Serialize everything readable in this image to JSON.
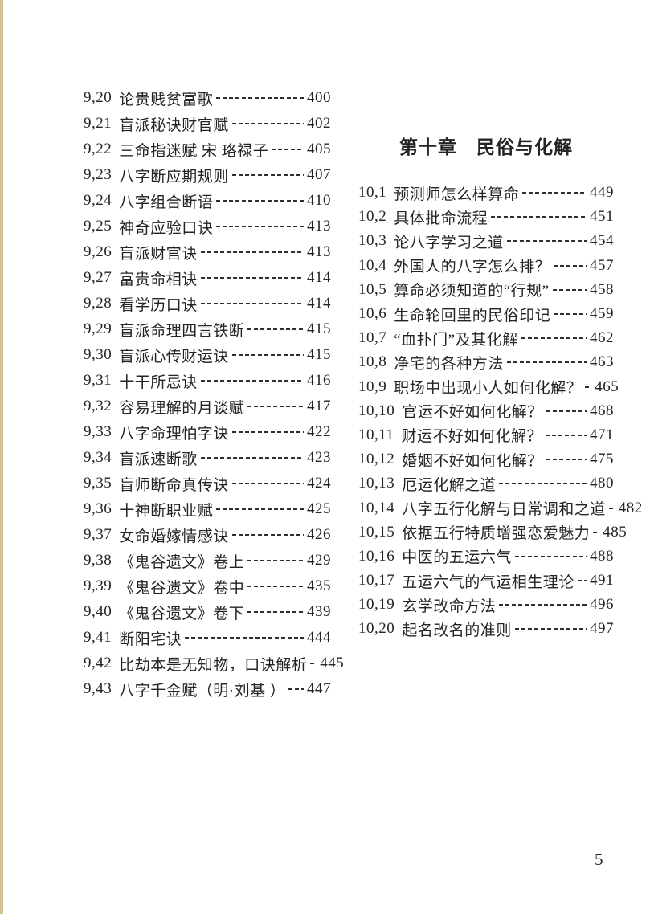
{
  "page": {
    "number": "5",
    "edge_color": "#d5c196",
    "text_color": "#242424"
  },
  "right_column": {
    "chapter_heading": "第十章　民俗与化解",
    "entries": [
      {
        "no": "10,1",
        "title": "预测师怎么样算命",
        "page": "449"
      },
      {
        "no": "10,2",
        "title": "具体批命流程",
        "page": "451"
      },
      {
        "no": "10,3",
        "title": "论八字学习之道",
        "page": "454"
      },
      {
        "no": "10,4",
        "title": "外国人的八字怎么排？",
        "page": "457"
      },
      {
        "no": "10,5",
        "title": "算命必须知道的“行规”",
        "page": "458"
      },
      {
        "no": "10,6",
        "title": "生命轮回里的民俗印记",
        "page": "459"
      },
      {
        "no": "10,7",
        "title": "“血扑门”及其化解",
        "page": "462"
      },
      {
        "no": "10,8",
        "title": "净宅的各种方法",
        "page": "463"
      },
      {
        "no": "10,9",
        "title": "职场中出现小人如何化解？",
        "page": "465"
      },
      {
        "no": "10,10",
        "title": "官运不好如何化解？",
        "page": "468"
      },
      {
        "no": "10,11",
        "title": "财运不好如何化解？",
        "page": "471"
      },
      {
        "no": "10,12",
        "title": "婚姻不好如何化解？",
        "page": "475"
      },
      {
        "no": "10,13",
        "title": "厄运化解之道",
        "page": "480"
      },
      {
        "no": "10,14",
        "title": "八字五行化解与日常调和之道",
        "page": "482"
      },
      {
        "no": "10,15",
        "title": "依据五行特质增强恋爱魅力",
        "page": "485"
      },
      {
        "no": "10,16",
        "title": "中医的五运六气",
        "page": "488"
      },
      {
        "no": "10,17",
        "title": "五运六气的气运相生理论",
        "page": "491"
      },
      {
        "no": "10,19",
        "title": "玄学改命方法",
        "page": "496"
      },
      {
        "no": "10,20",
        "title": "起名改名的准则",
        "page": "497"
      }
    ]
  },
  "left_column": {
    "entries": [
      {
        "no": "9,20",
        "title": "论贵贱贫富歌",
        "page": "400"
      },
      {
        "no": "9,21",
        "title": "盲派秘诀财官赋",
        "page": "402"
      },
      {
        "no": "9,22",
        "title": "三命指迷赋 宋 珞禄子",
        "page": "405"
      },
      {
        "no": "9,23",
        "title": "八字断应期规则",
        "page": "407"
      },
      {
        "no": "9,24",
        "title": "八字组合断语",
        "page": "410"
      },
      {
        "no": "9,25",
        "title": "神奇应验口诀",
        "page": "413"
      },
      {
        "no": "9,26",
        "title": "盲派财官诀",
        "page": "413"
      },
      {
        "no": "9,27",
        "title": "富贵命相诀",
        "page": "414"
      },
      {
        "no": "9,28",
        "title": "看学历口诀",
        "page": "414"
      },
      {
        "no": "9,29",
        "title": "盲派命理四言铁断",
        "page": "415"
      },
      {
        "no": "9,30",
        "title": "盲派心传财运诀",
        "page": "415"
      },
      {
        "no": "9,31",
        "title": "十干所忌诀",
        "page": "416"
      },
      {
        "no": "9,32",
        "title": "容易理解的月谈赋",
        "page": "417"
      },
      {
        "no": "9,33",
        "title": "八字命理怕字诀",
        "page": "422"
      },
      {
        "no": "9,34",
        "title": "盲派速断歌",
        "page": "423"
      },
      {
        "no": "9,35",
        "title": "盲师断命真传诀",
        "page": "424"
      },
      {
        "no": "9,36",
        "title": "十神断职业赋",
        "page": "425"
      },
      {
        "no": "9,37",
        "title": "女命婚嫁情感诀",
        "page": "426"
      },
      {
        "no": "9,38",
        "title": "《鬼谷遗文》卷上",
        "page": "429"
      },
      {
        "no": "9,39",
        "title": "《鬼谷遗文》卷中",
        "page": "435"
      },
      {
        "no": "9,40",
        "title": "《鬼谷遗文》卷下",
        "page": "439"
      },
      {
        "no": "9,41",
        "title": "断阳宅诀",
        "page": "444"
      },
      {
        "no": "9,42",
        "title": "比劫本是无知物，口诀解析",
        "page": "445"
      },
      {
        "no": "9,43",
        "title": "八字千金赋（明·刘基 ）",
        "page": "447"
      }
    ]
  }
}
